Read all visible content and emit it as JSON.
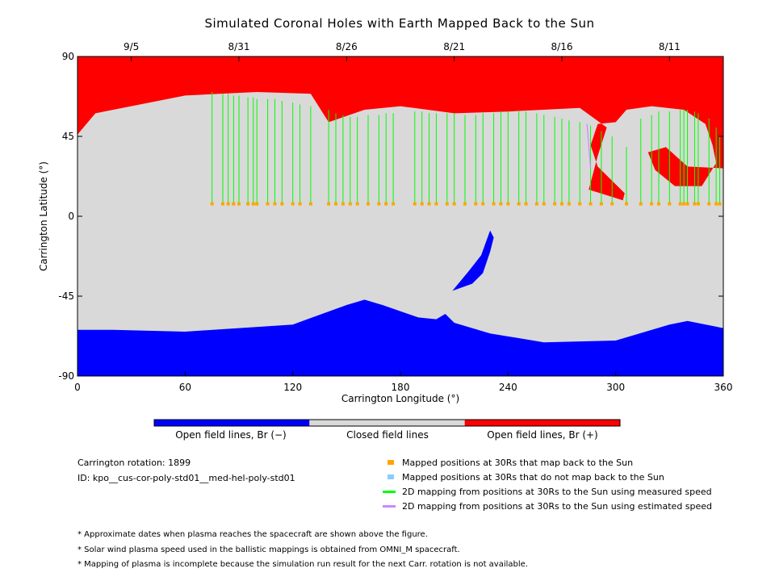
{
  "chart_data": {
    "type": "map",
    "title": "Simulated Coronal Holes with Earth Mapped Back to the Sun",
    "xlabel": "Carrington Longitude (°)",
    "ylabel": "Carrington Latitude (°)",
    "xlim": [
      0,
      360
    ],
    "ylim": [
      -90,
      90
    ],
    "x_ticks": [
      0,
      60,
      120,
      180,
      240,
      300,
      360
    ],
    "y_ticks": [
      90,
      45,
      0,
      -45,
      -90
    ],
    "top_date_ticks": [
      {
        "label": "9/5",
        "lon": 30
      },
      {
        "label": "8/31",
        "lon": 90
      },
      {
        "label": "8/26",
        "lon": 150
      },
      {
        "label": "8/21",
        "lon": 210
      },
      {
        "label": "8/16",
        "lon": 270
      },
      {
        "label": "8/11",
        "lon": 330
      }
    ],
    "regions": {
      "north_open": {
        "lonlat": [
          [
            0,
            90
          ],
          [
            360,
            90
          ],
          [
            360,
            27
          ],
          [
            340,
            28
          ],
          [
            328,
            39
          ],
          [
            318,
            36
          ],
          [
            322,
            26
          ],
          [
            333,
            17
          ],
          [
            348,
            17
          ],
          [
            356,
            30
          ],
          [
            354,
            40
          ],
          [
            350,
            52
          ],
          [
            338,
            60
          ],
          [
            320,
            62
          ],
          [
            306,
            60
          ],
          [
            300,
            53
          ],
          [
            290,
            52
          ],
          [
            286,
            40
          ],
          [
            290,
            28
          ],
          [
            305,
            13
          ],
          [
            304,
            9
          ],
          [
            285,
            15
          ],
          [
            290,
            34
          ],
          [
            295,
            50
          ],
          [
            280,
            61
          ],
          [
            240,
            59
          ],
          [
            210,
            58
          ],
          [
            180,
            62
          ],
          [
            160,
            60
          ],
          [
            140,
            53
          ],
          [
            130,
            69
          ],
          [
            100,
            70
          ],
          [
            60,
            68
          ],
          [
            10,
            58
          ],
          [
            0,
            46
          ]
        ],
        "color": "#ff0000"
      },
      "south_open": {
        "lonlat": [
          [
            0,
            -64
          ],
          [
            20,
            -64
          ],
          [
            60,
            -65
          ],
          [
            90,
            -63
          ],
          [
            120,
            -61
          ],
          [
            150,
            -50
          ],
          [
            160,
            -47
          ],
          [
            170,
            -50
          ],
          [
            190,
            -57
          ],
          [
            200,
            -58
          ],
          [
            205,
            -55
          ],
          [
            210,
            -60
          ],
          [
            230,
            -66
          ],
          [
            260,
            -71
          ],
          [
            300,
            -70
          ],
          [
            330,
            -61
          ],
          [
            340,
            -59
          ],
          [
            360,
            -63
          ],
          [
            360,
            -90
          ],
          [
            0,
            -90
          ]
        ],
        "color": "#0000ff"
      },
      "mid_hole": {
        "lonlat": [
          [
            209,
            -42
          ],
          [
            218,
            -31
          ],
          [
            225,
            -22
          ],
          [
            230,
            -8
          ],
          [
            232,
            -12
          ],
          [
            230,
            -20
          ],
          [
            226,
            -32
          ],
          [
            220,
            -38
          ]
        ],
        "color": "#0000ff"
      },
      "closed": {
        "color": "#d9d9d9"
      }
    },
    "mapped_points_at_30Rs": {
      "lat": 7,
      "lon": [
        75,
        81,
        84,
        87,
        90,
        95,
        98,
        100,
        106,
        110,
        114,
        120,
        124,
        130,
        140,
        144,
        148,
        152,
        156,
        162,
        168,
        172,
        176,
        188,
        192,
        196,
        200,
        206,
        210,
        216,
        222,
        226,
        232,
        236,
        240,
        246,
        250,
        256,
        260,
        266,
        270,
        274,
        280,
        286,
        292,
        298,
        306,
        314,
        320,
        324,
        330,
        336,
        338,
        340,
        344,
        346,
        352,
        356,
        358
      ]
    },
    "field_lines_measured": {
      "color": "#00ff00",
      "lines": [
        [
          75,
          70
        ],
        [
          81,
          69
        ],
        [
          84,
          69
        ],
        [
          87,
          68
        ],
        [
          90,
          68
        ],
        [
          95,
          67
        ],
        [
          98,
          67
        ],
        [
          100,
          66
        ],
        [
          106,
          66
        ],
        [
          110,
          66
        ],
        [
          114,
          65
        ],
        [
          120,
          64
        ],
        [
          124,
          63
        ],
        [
          130,
          62
        ],
        [
          140,
          60
        ],
        [
          144,
          58
        ],
        [
          148,
          57
        ],
        [
          152,
          56
        ],
        [
          156,
          56
        ],
        [
          162,
          57
        ],
        [
          168,
          57
        ],
        [
          172,
          58
        ],
        [
          176,
          58
        ],
        [
          188,
          59
        ],
        [
          192,
          59
        ],
        [
          196,
          58
        ],
        [
          200,
          58
        ],
        [
          206,
          58
        ],
        [
          210,
          58
        ],
        [
          216,
          57
        ],
        [
          222,
          57
        ],
        [
          226,
          58
        ],
        [
          232,
          58
        ],
        [
          236,
          59
        ],
        [
          240,
          59
        ],
        [
          246,
          59
        ],
        [
          250,
          59
        ],
        [
          256,
          58
        ],
        [
          260,
          57
        ],
        [
          266,
          56
        ],
        [
          270,
          55
        ],
        [
          274,
          54
        ],
        [
          280,
          53
        ],
        [
          286,
          51
        ],
        [
          292,
          48
        ],
        [
          298,
          45
        ],
        [
          306,
          39
        ],
        [
          314,
          55
        ],
        [
          320,
          57
        ],
        [
          324,
          59
        ],
        [
          330,
          59
        ],
        [
          336,
          60
        ],
        [
          338,
          60
        ],
        [
          340,
          60
        ],
        [
          344,
          59
        ],
        [
          346,
          58
        ],
        [
          352,
          55
        ],
        [
          356,
          50
        ],
        [
          358,
          45
        ]
      ]
    },
    "field_lines_estimated": {
      "color": "#cc88ff",
      "lines": [
        [
          284,
          52
        ]
      ]
    },
    "legend_bar": [
      {
        "label": "Open field lines, Br (−)",
        "color": "#0000ff"
      },
      {
        "label": "Closed field lines",
        "color": "#d9d9d9"
      },
      {
        "label": "Open field lines, Br (+)",
        "color": "#ff0000"
      }
    ]
  },
  "info": {
    "rotation": "Carrington rotation: 1899",
    "id": "ID: kpo__cus-cor-poly-std01__med-hel-poly-std01"
  },
  "key": [
    {
      "label": "Mapped positions at 30Rs that map back to the Sun",
      "kind": "swatch",
      "color": "#ffa500"
    },
    {
      "label": "Mapped positions at 30Rs that do not map back to the Sun",
      "kind": "swatch",
      "color": "#87cefa"
    },
    {
      "label": "2D mapping from positions at 30Rs to the Sun using measured speed",
      "kind": "line",
      "color": "#00ff00"
    },
    {
      "label": "2D mapping from positions at 30Rs to the Sun using estimated speed",
      "kind": "line",
      "color": "#cc88ff"
    }
  ],
  "notes": [
    "* Approximate dates when plasma reaches the spacecraft are shown above the figure.",
    "* Solar wind plasma speed used in the ballistic mappings is obtained from OMNI_M spacecraft.",
    "* Mapping of plasma is incomplete because the simulation run result for the next Carr. rotation is not available."
  ]
}
